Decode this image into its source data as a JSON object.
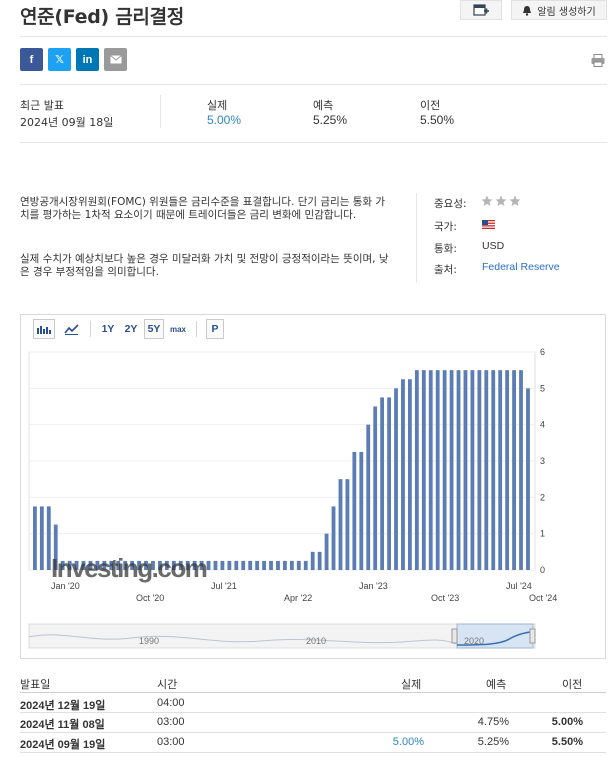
{
  "header": {
    "title": "연준(Fed) 금리결정",
    "alert_label": "알림 생성하기"
  },
  "share": {
    "facebook": "f",
    "x": "𝕏",
    "linkedin": "in"
  },
  "release": {
    "latest_label": "최근 발표",
    "latest_date": "2024년 09월 18일",
    "actual_label": "실제",
    "actual_value": "5.00%",
    "forecast_label": "예측",
    "forecast_value": "5.25%",
    "previous_label": "이전",
    "previous_value": "5.50%"
  },
  "description": {
    "p1": "연방공개시장위원회(FOMC) 위원들은 금리수준을 표결합니다. 단기 금리는 통화 가치를 평가하는 1차적 요소이기 때문에 트레이더들은 금리 변화에 민감합니다.",
    "p2": "실제 수치가 예상치보다 높은 경우 미달러화 가치 및 전망이 긍정적이라는 뜻이며, 낮은 경우 부정적임을 의미합니다."
  },
  "meta": {
    "importance_label": "중요성:",
    "country_label": "국가:",
    "currency_label": "통화:",
    "currency_value": "USD",
    "source_label": "출처:",
    "source_value": "Federal Reserve"
  },
  "chart_toolbar": {
    "r1y": "1Y",
    "r2y": "2Y",
    "r5y": "5Y",
    "rmax": "max",
    "p": "P"
  },
  "chart_data": {
    "type": "bar",
    "values": [
      1.75,
      1.75,
      1.75,
      1.25,
      0.25,
      0.25,
      0.25,
      0.25,
      0.25,
      0.25,
      0.25,
      0.25,
      0.25,
      0.25,
      0.25,
      0.25,
      0.25,
      0.25,
      0.25,
      0.25,
      0.25,
      0.25,
      0.25,
      0.25,
      0.25,
      0.25,
      0.25,
      0.25,
      0.25,
      0.25,
      0.25,
      0.25,
      0.25,
      0.25,
      0.25,
      0.25,
      0.25,
      0.25,
      0.25,
      0.25,
      0.5,
      0.5,
      1.0,
      1.75,
      2.5,
      2.5,
      3.25,
      3.25,
      4.0,
      4.5,
      4.75,
      4.75,
      5.0,
      5.25,
      5.25,
      5.5,
      5.5,
      5.5,
      5.5,
      5.5,
      5.5,
      5.5,
      5.5,
      5.5,
      5.5,
      5.5,
      5.5,
      5.5,
      5.5,
      5.5,
      5.5,
      5.0
    ],
    "ylim": [
      0,
      6
    ],
    "yticks": [
      "0",
      "1",
      "2",
      "3",
      "4",
      "5",
      "6"
    ],
    "xticks_top": [
      "Jan '20",
      "Jul '21",
      "Jan '23",
      "Jul '24"
    ],
    "xticks_bottom": [
      "Oct '20",
      "Apr '22",
      "Oct '23",
      "Oct '24"
    ],
    "navigator_labels": [
      "1990",
      "2010",
      "2020"
    ],
    "bar_color": "#5b7db3",
    "watermark": "Investing.com"
  },
  "table": {
    "headers": {
      "date": "발표일",
      "time": "시간",
      "actual": "실제",
      "forecast": "예측",
      "previous": "이전"
    },
    "rows": [
      {
        "date": "2024년 12월 19일",
        "time": "04:00",
        "actual": "",
        "forecast": "",
        "previous": ""
      },
      {
        "date": "2024년 11월 08일",
        "time": "03:00",
        "actual": "",
        "forecast": "4.75%",
        "previous": "5.00%"
      },
      {
        "date": "2024년 09월 19일",
        "time": "03:00",
        "actual": "5.00%",
        "forecast": "5.25%",
        "previous": "5.50%"
      }
    ]
  },
  "colors": {
    "link_blue": "#2a6fc9",
    "actual_blue": "#2e86c1",
    "star_gray": "#b5b5b5"
  }
}
